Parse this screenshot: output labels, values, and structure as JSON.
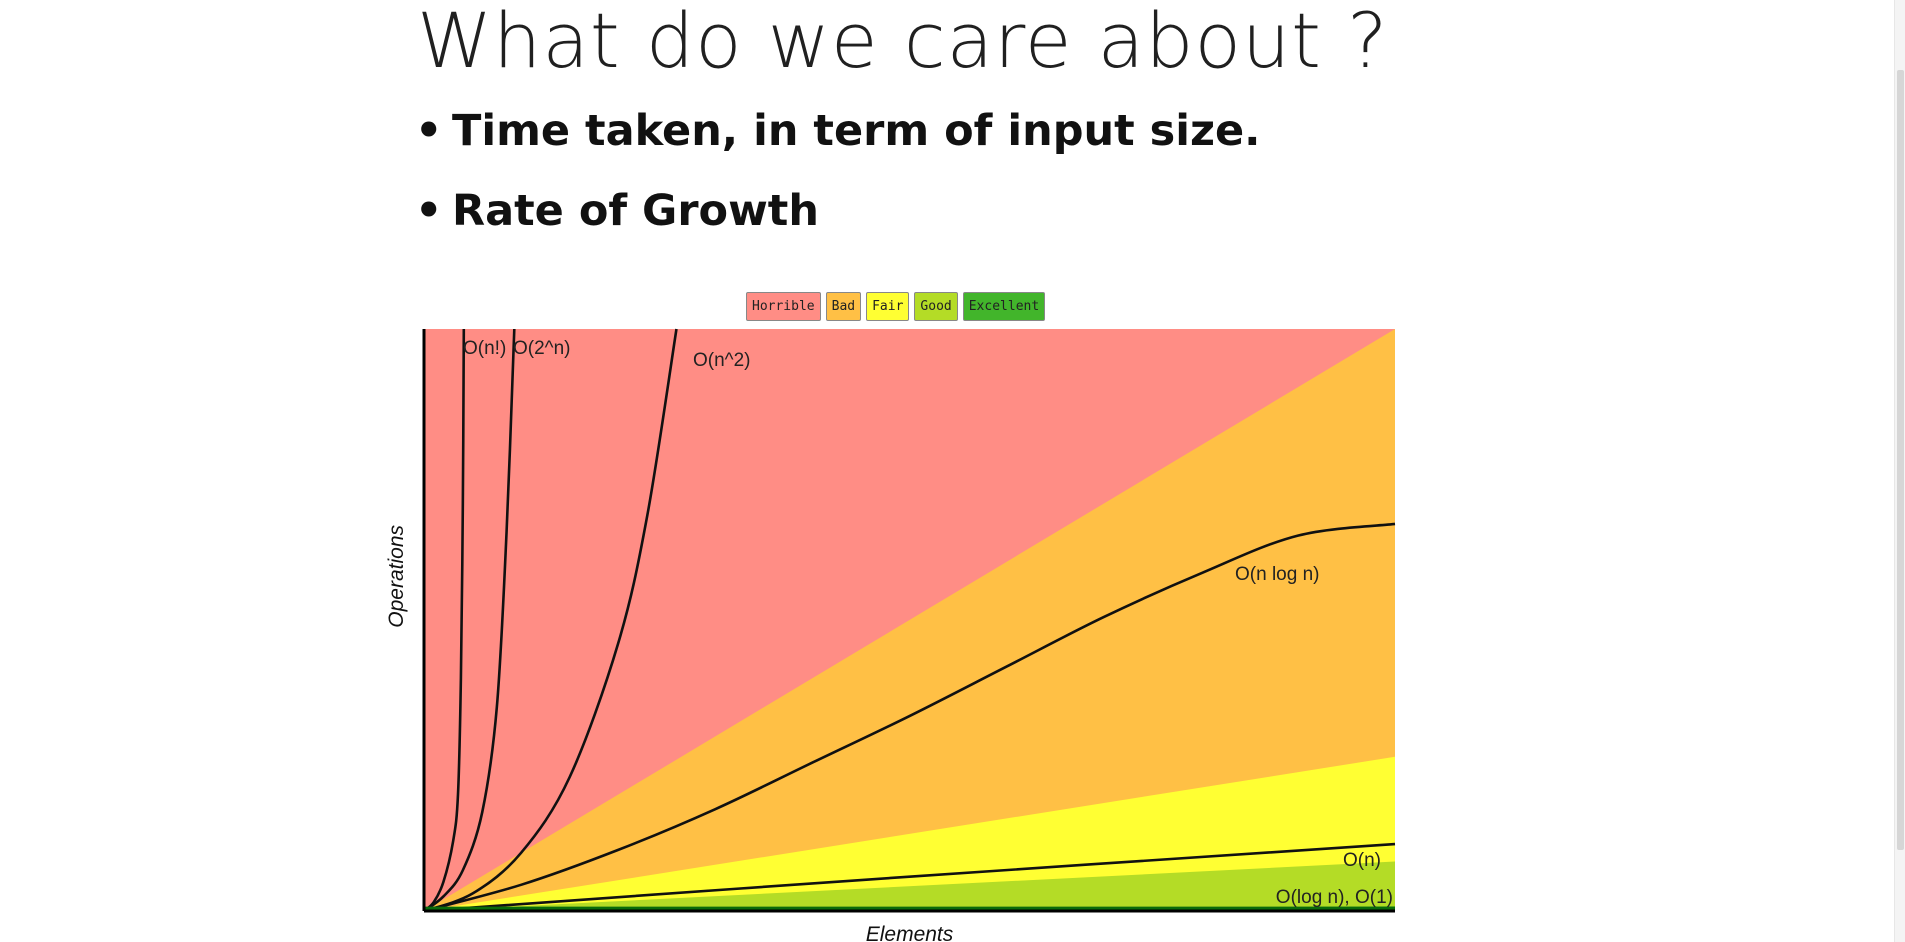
{
  "slide": {
    "title": "What do we care about ?",
    "bullets": [
      "Time taken, in term of input size.",
      "Rate of Growth"
    ]
  },
  "chart_data": {
    "type": "area",
    "legend": [
      {
        "label": "Horrible",
        "color": "#ff8d85"
      },
      {
        "label": "Bad",
        "color": "#ffc045"
      },
      {
        "label": "Fair",
        "color": "#ffff33"
      },
      {
        "label": "Good",
        "color": "#b4dc26"
      },
      {
        "label": "Excellent",
        "color": "#42b52b"
      }
    ],
    "legend_placement": "top-center",
    "xlabel": "Elements",
    "ylabel": "Operations",
    "xlim": [
      0,
      100
    ],
    "ylim": [
      0,
      100
    ],
    "grid": false,
    "zones": [
      {
        "name": "Horrible",
        "color": "#ff8d85",
        "upper_boundary": [
          [
            0,
            100
          ],
          [
            100,
            100
          ]
        ]
      },
      {
        "name": "Bad",
        "color": "#ffc045",
        "upper_boundary": [
          [
            0,
            0
          ],
          [
            100,
            100
          ]
        ]
      },
      {
        "name": "Fair",
        "color": "#ffff33",
        "upper_boundary": [
          [
            0,
            0
          ],
          [
            100,
            26.5
          ]
        ]
      },
      {
        "name": "Good",
        "color": "#b4dc26",
        "upper_boundary": [
          [
            0,
            0
          ],
          [
            100,
            8.5
          ]
        ]
      },
      {
        "name": "Excellent",
        "color": "#42b52b",
        "upper_boundary": [
          [
            0,
            0
          ],
          [
            100,
            0.8
          ]
        ]
      }
    ],
    "series": [
      {
        "name": "O(n!)",
        "points": [
          [
            0,
            0
          ],
          [
            1,
            1.5
          ],
          [
            2,
            5
          ],
          [
            3,
            12
          ],
          [
            3.5,
            20
          ],
          [
            3.8,
            40
          ],
          [
            4,
            70
          ],
          [
            4.1,
            100
          ]
        ]
      },
      {
        "name": "O(2^n)",
        "points": [
          [
            0,
            0
          ],
          [
            2,
            2.5
          ],
          [
            4,
            7
          ],
          [
            6,
            17
          ],
          [
            7.5,
            35
          ],
          [
            8.5,
            65
          ],
          [
            9.3,
            100
          ]
        ]
      },
      {
        "name": "O(n^2)",
        "points": [
          [
            0,
            0
          ],
          [
            5,
            3
          ],
          [
            10,
            10
          ],
          [
            15,
            23
          ],
          [
            20,
            46
          ],
          [
            23,
            68
          ],
          [
            26,
            100
          ]
        ]
      },
      {
        "name": "O(n log n)",
        "points": [
          [
            0,
            0
          ],
          [
            10,
            4.5
          ],
          [
            20,
            10.5
          ],
          [
            30,
            17.5
          ],
          [
            40,
            25.5
          ],
          [
            50,
            33.5
          ],
          [
            60,
            42
          ],
          [
            70,
            50.5
          ],
          [
            80,
            58
          ],
          [
            90,
            64.5
          ],
          [
            100,
            66.5
          ]
        ]
      },
      {
        "name": "O(n)",
        "points": [
          [
            0,
            0
          ],
          [
            50,
            5.9
          ],
          [
            100,
            11.5
          ]
        ]
      },
      {
        "name": "O(log n), O(1)",
        "points": [
          [
            0,
            0.4
          ],
          [
            100,
            0.4
          ]
        ]
      }
    ]
  }
}
